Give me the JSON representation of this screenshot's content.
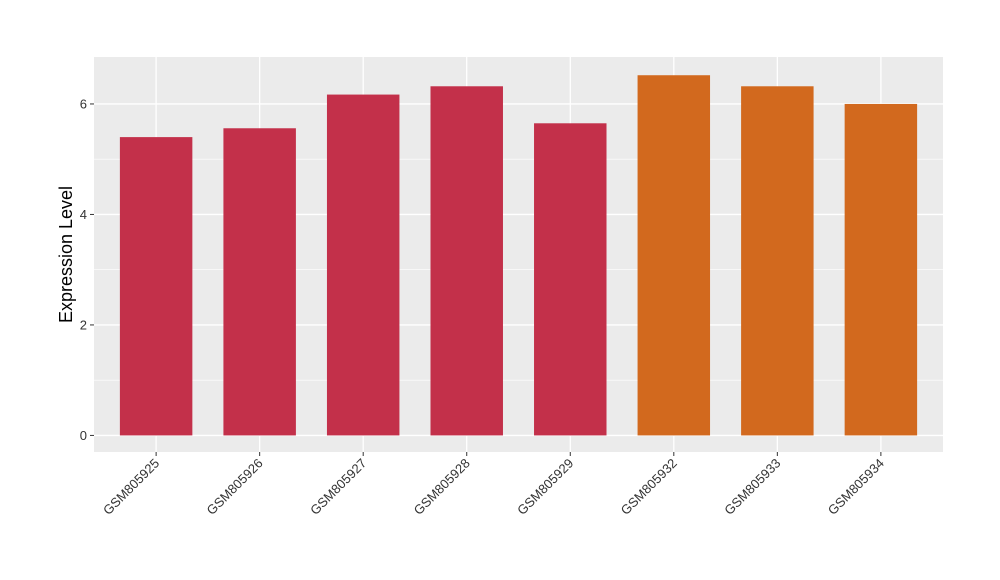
{
  "chart_data": {
    "type": "bar",
    "title": "",
    "xlabel": "",
    "ylabel": "Expression Level",
    "categories": [
      "GSM805925",
      "GSM805926",
      "GSM805927",
      "GSM805928",
      "GSM805929",
      "GSM805932",
      "GSM805933",
      "GSM805934"
    ],
    "values": [
      5.4,
      5.56,
      6.17,
      6.32,
      5.65,
      6.52,
      6.32,
      6.0
    ],
    "bar_colors": [
      "#c3304a",
      "#c3304a",
      "#c3304a",
      "#c3304a",
      "#c3304a",
      "#d2691e",
      "#d2691e",
      "#d2691e"
    ],
    "ylim": [
      -0.3,
      6.85
    ],
    "yticks": [
      0,
      2,
      4,
      6
    ],
    "grid": true,
    "panel_background": "#ebebeb",
    "legend": "none"
  }
}
